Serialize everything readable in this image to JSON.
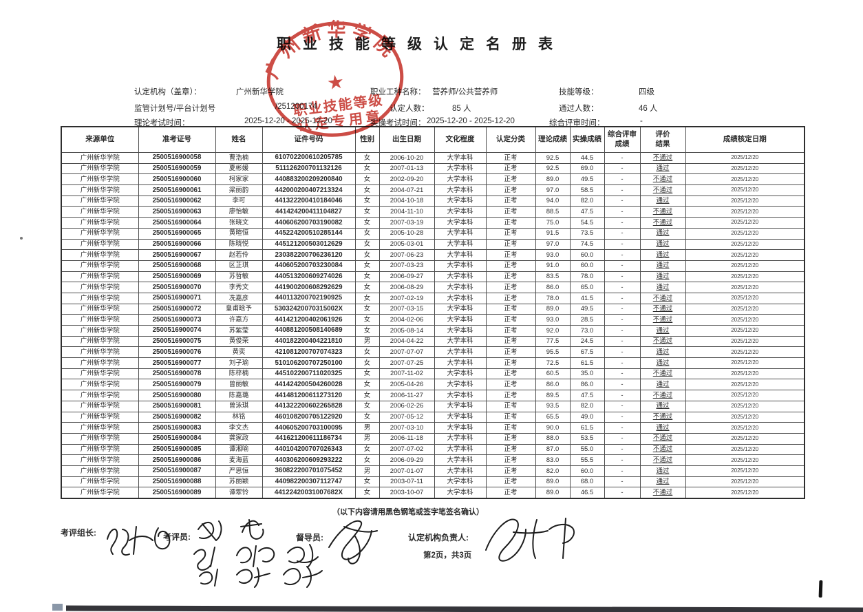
{
  "page": {
    "title": "职业技能等级认定名册表",
    "signature_note": "（以下内容请用黑色钢笔或签字笔签名确认）",
    "page_number": "第2页，共3页"
  },
  "seal": {
    "arc_text": "广州新华学院",
    "star": "★",
    "line1": "职业技能等级",
    "line2": "认定专用章",
    "color": "#c5342c"
  },
  "info": {
    "org_label": "认定机构（盖章）：",
    "org_value": "广州新华学院",
    "plan_label": "监管计划号/平台计划号",
    "plan_value": "/251200174",
    "theory_time_label": "理论考试时间：",
    "theory_time_value": "2025-12-20 - 2025-12-20",
    "occupation_label": "职业工种名称：",
    "occupation_value": "营养师/公共营养师",
    "count_label": "认定人数：",
    "count_value": "85 人",
    "practical_time_label": "实操考试时间：",
    "practical_time_value": "2025-12-20 - 2025-12-20",
    "level_label": "技能等级：",
    "level_value": "四级",
    "pass_label": "通过人数：",
    "pass_value": "46 人",
    "review_time_label": "综合评审时间：",
    "review_time_value": "-"
  },
  "signatures": {
    "leader_label": "考评组长:",
    "examiner_label": "考评员:",
    "supervisor_label": "督导员:",
    "responsible_label": "认定机构负责人:"
  },
  "table": {
    "headers": [
      "来源单位",
      "准考证号",
      "姓名",
      "证件号码",
      "性别",
      "出生日期",
      "文化程度",
      "认定分类",
      "理论成绩",
      "实操成绩",
      "综合评审\n成绩",
      "评价\n结果",
      "成绩核定日期"
    ],
    "rows": [
      [
        "广州新华学院",
        "2500516900058",
        "曹浩楠",
        "610702200610205785",
        "女",
        "2006-10-20",
        "大学本科",
        "正考",
        "92.5",
        "44.5",
        "-",
        "不通过",
        "2025/12/20"
      ],
      [
        "广州新华学院",
        "2500516900059",
        "夏彬媛",
        "511126200701132126",
        "女",
        "2007-01-13",
        "大学本科",
        "正考",
        "92.5",
        "69.0",
        "-",
        "通过",
        "2025/12/20"
      ],
      [
        "广州新华学院",
        "2500516900060",
        "柯家家",
        "440883200209200840",
        "女",
        "2002-09-20",
        "大学本科",
        "正考",
        "89.0",
        "49.5",
        "-",
        "不通过",
        "2025/12/20"
      ],
      [
        "广州新华学院",
        "2500516900061",
        "梁丽韵",
        "442000200407213324",
        "女",
        "2004-07-21",
        "大学本科",
        "正考",
        "97.0",
        "58.5",
        "-",
        "不通过",
        "2025/12/20"
      ],
      [
        "广州新华学院",
        "2500516900062",
        "李可",
        "441322200410184046",
        "女",
        "2004-10-18",
        "大学本科",
        "正考",
        "94.0",
        "82.0",
        "-",
        "通过",
        "2025/12/20"
      ],
      [
        "广州新华学院",
        "2500516900063",
        "廖怡敏",
        "441424200411104827",
        "女",
        "2004-11-10",
        "大学本科",
        "正考",
        "88.5",
        "47.5",
        "-",
        "不通过",
        "2025/12/20"
      ],
      [
        "广州新华学院",
        "2500516900064",
        "张晓文",
        "440606200703190082",
        "女",
        "2007-03-19",
        "大学本科",
        "正考",
        "75.0",
        "54.5",
        "-",
        "不通过",
        "2025/12/20"
      ],
      [
        "广州新华学院",
        "2500516900065",
        "黄暄恒",
        "445224200510285144",
        "女",
        "2005-10-28",
        "大学本科",
        "正考",
        "91.5",
        "73.5",
        "-",
        "通过",
        "2025/12/20"
      ],
      [
        "广州新华学院",
        "2500516900066",
        "陈晓悦",
        "445121200503012629",
        "女",
        "2005-03-01",
        "大学本科",
        "正考",
        "97.0",
        "74.5",
        "-",
        "通过",
        "2025/12/20"
      ],
      [
        "广州新华学院",
        "2500516900067",
        "赵若伶",
        "230382200706236120",
        "女",
        "2007-06-23",
        "大学本科",
        "正考",
        "93.0",
        "60.0",
        "-",
        "通过",
        "2025/12/20"
      ],
      [
        "广州新华学院",
        "2500516900068",
        "区芷琪",
        "440605200703230084",
        "女",
        "2007-03-23",
        "大学本科",
        "正考",
        "91.0",
        "60.0",
        "-",
        "通过",
        "2025/12/20"
      ],
      [
        "广州新华学院",
        "2500516900069",
        "苏哲敏",
        "440513200609274026",
        "女",
        "2006-09-27",
        "大学本科",
        "正考",
        "83.5",
        "78.0",
        "-",
        "通过",
        "2025/12/20"
      ],
      [
        "广州新华学院",
        "2500516900070",
        "李秀文",
        "441900200608292629",
        "女",
        "2006-08-29",
        "大学本科",
        "正考",
        "86.0",
        "65.0",
        "-",
        "通过",
        "2025/12/20"
      ],
      [
        "广州新华学院",
        "2500516900071",
        "冼嘉彦",
        "440113200702190925",
        "女",
        "2007-02-19",
        "大学本科",
        "正考",
        "78.0",
        "41.5",
        "-",
        "不通过",
        "2025/12/20"
      ],
      [
        "广州新华学院",
        "2500516900072",
        "皇甫晗予",
        "53032420070315002X",
        "女",
        "2007-03-15",
        "大学本科",
        "正考",
        "89.0",
        "49.5",
        "-",
        "不通过",
        "2025/12/20"
      ],
      [
        "广州新华学院",
        "2500516900073",
        "许嘉方",
        "441421200402061926",
        "女",
        "2004-02-06",
        "大学本科",
        "正考",
        "93.0",
        "28.5",
        "-",
        "不通过",
        "2025/12/20"
      ],
      [
        "广州新华学院",
        "2500516900074",
        "苏紫莹",
        "440881200508140689",
        "女",
        "2005-08-14",
        "大学本科",
        "正考",
        "92.0",
        "73.0",
        "-",
        "通过",
        "2025/12/20"
      ],
      [
        "广州新华学院",
        "2500516900075",
        "黄俊荣",
        "440182200404221810",
        "男",
        "2004-04-22",
        "大学本科",
        "正考",
        "77.5",
        "24.5",
        "-",
        "不通过",
        "2025/12/20"
      ],
      [
        "广州新华学院",
        "2500516900076",
        "黄奕",
        "421081200707074323",
        "女",
        "2007-07-07",
        "大学本科",
        "正考",
        "95.5",
        "67.5",
        "-",
        "通过",
        "2025/12/20"
      ],
      [
        "广州新华学院",
        "2500516900077",
        "刘子瑜",
        "510106200707250100",
        "女",
        "2007-07-25",
        "大学本科",
        "正考",
        "72.5",
        "61.5",
        "-",
        "通过",
        "2025/12/20"
      ],
      [
        "广州新华学院",
        "2500516900078",
        "陈梓楠",
        "445102200711020325",
        "女",
        "2007-11-02",
        "大学本科",
        "正考",
        "60.5",
        "35.0",
        "-",
        "不通过",
        "2025/12/20"
      ],
      [
        "广州新华学院",
        "2500516900079",
        "曾丽敏",
        "441424200504260028",
        "女",
        "2005-04-26",
        "大学本科",
        "正考",
        "86.0",
        "86.0",
        "-",
        "通过",
        "2025/12/20"
      ],
      [
        "广州新华学院",
        "2500516900080",
        "陈嘉璐",
        "441481200611273120",
        "女",
        "2006-11-27",
        "大学本科",
        "正考",
        "89.5",
        "47.5",
        "-",
        "不通过",
        "2025/12/20"
      ],
      [
        "广州新华学院",
        "2500516900081",
        "曾泳琪",
        "441322200602265828",
        "女",
        "2006-02-26",
        "大学本科",
        "正考",
        "93.5",
        "82.0",
        "-",
        "通过",
        "2025/12/20"
      ],
      [
        "广州新华学院",
        "2500516900082",
        "林铭",
        "460108200705122920",
        "女",
        "2007-05-12",
        "大学本科",
        "正考",
        "65.5",
        "49.0",
        "-",
        "不通过",
        "2025/12/20"
      ],
      [
        "广州新华学院",
        "2500516900083",
        "李文杰",
        "440605200703100095",
        "男",
        "2007-03-10",
        "大学本科",
        "正考",
        "90.0",
        "61.5",
        "-",
        "通过",
        "2025/12/20"
      ],
      [
        "广州新华学院",
        "2500516900084",
        "龚家政",
        "441621200611186734",
        "男",
        "2006-11-18",
        "大学本科",
        "正考",
        "88.0",
        "53.5",
        "-",
        "不通过",
        "2025/12/20"
      ],
      [
        "广州新华学院",
        "2500516900085",
        "谭湘喻",
        "440104200707026343",
        "女",
        "2007-07-02",
        "大学本科",
        "正考",
        "87.0",
        "55.0",
        "-",
        "不通过",
        "2025/12/20"
      ],
      [
        "广州新华学院",
        "2500516900086",
        "麦海蓝",
        "440306200609293222",
        "女",
        "2006-09-29",
        "大学本科",
        "正考",
        "83.0",
        "55.5",
        "-",
        "不通过",
        "2025/12/20"
      ],
      [
        "广州新华学院",
        "2500516900087",
        "严思恒",
        "360822200701075452",
        "男",
        "2007-01-07",
        "大学本科",
        "正考",
        "82.0",
        "60.0",
        "-",
        "通过",
        "2025/12/20"
      ],
      [
        "广州新华学院",
        "2500516900088",
        "苏丽颖",
        "440982200307112747",
        "女",
        "2003-07-11",
        "大学本科",
        "正考",
        "89.0",
        "68.0",
        "-",
        "通过",
        "2025/12/20"
      ],
      [
        "广州新华学院",
        "2500516900089",
        "谭翠铃",
        "44122420031007682X",
        "女",
        "2003-10-07",
        "大学本科",
        "正考",
        "89.0",
        "46.5",
        "-",
        "不通过",
        "2025/12/20"
      ]
    ]
  }
}
